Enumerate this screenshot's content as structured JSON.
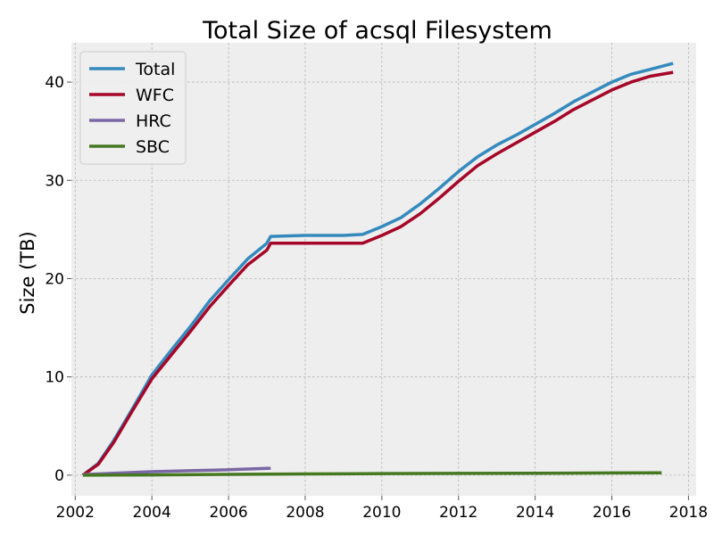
{
  "chart_data": {
    "type": "line",
    "title": "Total Size of acsql Filesystem",
    "xlabel": "",
    "ylabel": "Size (TB)",
    "xlim": [
      2001.9,
      2018.2
    ],
    "ylim": [
      -2.1,
      44.0
    ],
    "xticks": [
      2002,
      2004,
      2006,
      2008,
      2010,
      2012,
      2014,
      2016,
      2018
    ],
    "yticks": [
      0,
      10,
      20,
      30,
      40
    ],
    "grid": true,
    "legend_position": "upper-left",
    "colors": {
      "plot_background": "#eeeeee",
      "grid": "#b2b2b2"
    },
    "series": [
      {
        "name": "Total",
        "color": "#348abd",
        "x": [
          2002.2,
          2002.6,
          2003.0,
          2003.5,
          2004.0,
          2004.5,
          2005.0,
          2005.5,
          2006.0,
          2006.5,
          2007.0,
          2007.1,
          2008.0,
          2009.0,
          2009.5,
          2010.0,
          2010.5,
          2011.0,
          2011.5,
          2012.0,
          2012.5,
          2013.0,
          2013.5,
          2014.0,
          2014.5,
          2015.0,
          2015.5,
          2016.0,
          2016.5,
          2017.0,
          2017.6
        ],
        "y": [
          0.0,
          1.2,
          3.5,
          6.8,
          10.2,
          12.7,
          15.1,
          17.7,
          19.9,
          22.0,
          23.6,
          24.3,
          24.4,
          24.4,
          24.5,
          25.3,
          26.2,
          27.6,
          29.2,
          30.9,
          32.4,
          33.6,
          34.6,
          35.7,
          36.8,
          38.0,
          39.0,
          40.0,
          40.8,
          41.3,
          41.9
        ]
      },
      {
        "name": "WFC",
        "color": "#a60628",
        "x": [
          2002.2,
          2002.6,
          2003.0,
          2003.5,
          2004.0,
          2004.5,
          2005.0,
          2005.5,
          2006.0,
          2006.5,
          2007.0,
          2007.1,
          2008.0,
          2009.0,
          2009.5,
          2010.0,
          2010.5,
          2011.0,
          2011.5,
          2012.0,
          2012.5,
          2013.0,
          2013.5,
          2014.0,
          2014.5,
          2015.0,
          2015.5,
          2016.0,
          2016.5,
          2017.0,
          2017.6
        ],
        "y": [
          0.0,
          1.1,
          3.3,
          6.6,
          9.8,
          12.2,
          14.6,
          17.1,
          19.3,
          21.4,
          22.9,
          23.6,
          23.6,
          23.6,
          23.6,
          24.4,
          25.3,
          26.6,
          28.2,
          29.9,
          31.5,
          32.7,
          33.8,
          34.9,
          36.0,
          37.2,
          38.2,
          39.2,
          40.0,
          40.6,
          41.0
        ]
      },
      {
        "name": "HRC",
        "color": "#7a68a6",
        "x": [
          2002.2,
          2003.0,
          2004.0,
          2005.0,
          2006.0,
          2007.1
        ],
        "y": [
          0.05,
          0.2,
          0.35,
          0.45,
          0.55,
          0.7
        ]
      },
      {
        "name": "SBC",
        "color": "#467821",
        "x": [
          2002.2,
          2004.0,
          2006.0,
          2008.0,
          2010.0,
          2012.0,
          2014.0,
          2016.0,
          2017.3
        ],
        "y": [
          0.0,
          0.02,
          0.08,
          0.12,
          0.16,
          0.18,
          0.2,
          0.22,
          0.24
        ]
      }
    ]
  }
}
